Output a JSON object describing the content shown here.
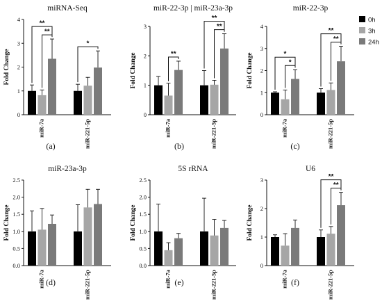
{
  "legend": [
    {
      "label": "0h",
      "color": "#000000"
    },
    {
      "label": "3h",
      "color": "#a6a6a6"
    },
    {
      "label": "24h",
      "color": "#7a7a7a"
    }
  ],
  "chart_data": [
    {
      "type": "bar",
      "panel_label": "(a)",
      "title": "miRNA-Seq",
      "ylabel": "Fold Change",
      "ylim": [
        0,
        4
      ],
      "yticks": [
        0,
        1,
        2,
        3,
        4
      ],
      "categories": [
        "miR-7a",
        "miR-221-5p"
      ],
      "series": [
        {
          "name": "0h",
          "values": [
            1.0,
            1.0
          ],
          "errors": [
            0.25,
            0.28
          ]
        },
        {
          "name": "3h",
          "values": [
            0.82,
            1.22
          ],
          "errors": [
            0.22,
            0.35
          ]
        },
        {
          "name": "24h",
          "values": [
            2.35,
            1.98
          ],
          "errors": [
            0.83,
            0.7
          ]
        }
      ],
      "significance": [
        {
          "category": 0,
          "from": 0,
          "to": 2,
          "label": "**",
          "level": 0.12
        },
        {
          "category": 0,
          "from": 1,
          "to": 2,
          "label": "**",
          "level": 0.06
        },
        {
          "category": 1,
          "from": 0,
          "to": 2,
          "label": "*",
          "level": 0.06
        }
      ]
    },
    {
      "type": "bar",
      "panel_label": "(b)",
      "title": "miR-22-3p | miR-23a-3p",
      "ylabel": "Fold Change",
      "ylim": [
        0,
        3
      ],
      "yticks": [
        0,
        1,
        2,
        3
      ],
      "categories": [
        "miR-7a",
        "miR-221-5p"
      ],
      "series": [
        {
          "name": "0h",
          "values": [
            1.0,
            1.0
          ],
          "errors": [
            0.3,
            0.5
          ]
        },
        {
          "name": "3h",
          "values": [
            0.65,
            1.02
          ],
          "errors": [
            0.42,
            0.15
          ]
        },
        {
          "name": "24h",
          "values": [
            1.52,
            2.25
          ],
          "errors": [
            0.3,
            0.5
          ]
        }
      ],
      "significance": [
        {
          "category": 0,
          "from": 1,
          "to": 2,
          "label": "**",
          "level": 0.06
        },
        {
          "category": 1,
          "from": 0,
          "to": 2,
          "label": "**",
          "level": 0.12
        },
        {
          "category": 1,
          "from": 1,
          "to": 2,
          "label": "**",
          "level": 0.06
        }
      ]
    },
    {
      "type": "bar",
      "panel_label": "(c)",
      "title": "miR-22-3p",
      "ylabel": "Fold Change",
      "ylim": [
        0,
        4
      ],
      "yticks": [
        0,
        1,
        2,
        3,
        4
      ],
      "categories": [
        "miR-7a",
        "miR-221-5p"
      ],
      "series": [
        {
          "name": "0h",
          "values": [
            1.0,
            1.0
          ],
          "errors": [
            0.04,
            0.18
          ]
        },
        {
          "name": "3h",
          "values": [
            0.7,
            1.12
          ],
          "errors": [
            0.42,
            0.32
          ]
        },
        {
          "name": "24h",
          "values": [
            1.62,
            2.42
          ],
          "errors": [
            0.42,
            0.68
          ]
        }
      ],
      "significance": [
        {
          "category": 0,
          "from": 0,
          "to": 2,
          "label": "*",
          "level": 0.12
        },
        {
          "category": 0,
          "from": 1,
          "to": 2,
          "label": "*",
          "level": 0.06
        },
        {
          "category": 1,
          "from": 0,
          "to": 2,
          "label": "**",
          "level": 0.12
        },
        {
          "category": 1,
          "from": 1,
          "to": 2,
          "label": "**",
          "level": 0.06
        }
      ]
    },
    {
      "type": "bar",
      "panel_label": "(d)",
      "title": "miR-23a-3p",
      "ylabel": "Fold Change",
      "ylim": [
        0,
        2.5
      ],
      "yticks": [
        0,
        0.5,
        1,
        1.5,
        2,
        2.5
      ],
      "yticklabels": [
        "0.0",
        "0.5",
        "1.0",
        "1.5",
        "2.0",
        "2.5"
      ],
      "categories": [
        "miR-7a",
        "miR-221-5p"
      ],
      "series": [
        {
          "name": "0h",
          "values": [
            1.0,
            1.0
          ],
          "errors": [
            0.6,
            0.78
          ]
        },
        {
          "name": "3h",
          "values": [
            1.05,
            1.7
          ],
          "errors": [
            0.62,
            0.53
          ]
        },
        {
          "name": "24h",
          "values": [
            1.22,
            1.8
          ],
          "errors": [
            0.26,
            0.43
          ]
        }
      ],
      "significance": []
    },
    {
      "type": "bar",
      "panel_label": "(e)",
      "title": "5S rRNA",
      "ylabel": "Fold Change",
      "ylim": [
        0,
        2.5
      ],
      "yticks": [
        0,
        0.5,
        1,
        1.5,
        2,
        2.5
      ],
      "yticklabels": [
        "0.0",
        "0.5",
        "1.0",
        "1.5",
        "2.0",
        "2.5"
      ],
      "categories": [
        "miR-7a",
        "miR-221-5p"
      ],
      "series": [
        {
          "name": "0h",
          "values": [
            1.0,
            1.0
          ],
          "errors": [
            0.8,
            0.97
          ]
        },
        {
          "name": "3h",
          "values": [
            0.45,
            0.88
          ],
          "errors": [
            0.22,
            0.47
          ]
        },
        {
          "name": "24h",
          "values": [
            0.8,
            1.1
          ],
          "errors": [
            0.14,
            0.22
          ]
        }
      ],
      "significance": []
    },
    {
      "type": "bar",
      "panel_label": "(f)",
      "title": "U6",
      "ylabel": "Fold Change",
      "ylim": [
        0,
        3
      ],
      "yticks": [
        0,
        1,
        2,
        3
      ],
      "categories": [
        "miR-7a",
        "miR-221-5p"
      ],
      "series": [
        {
          "name": "0h",
          "values": [
            1.0,
            1.0
          ],
          "errors": [
            0.08,
            0.25
          ]
        },
        {
          "name": "3h",
          "values": [
            0.7,
            1.12
          ],
          "errors": [
            0.42,
            0.25
          ]
        },
        {
          "name": "24h",
          "values": [
            1.32,
            2.12
          ],
          "errors": [
            0.28,
            0.45
          ]
        }
      ],
      "significance": [
        {
          "category": 1,
          "from": 0,
          "to": 2,
          "label": "**",
          "level": 0.12
        },
        {
          "category": 1,
          "from": 1,
          "to": 2,
          "label": "**",
          "level": 0.06
        }
      ]
    }
  ]
}
